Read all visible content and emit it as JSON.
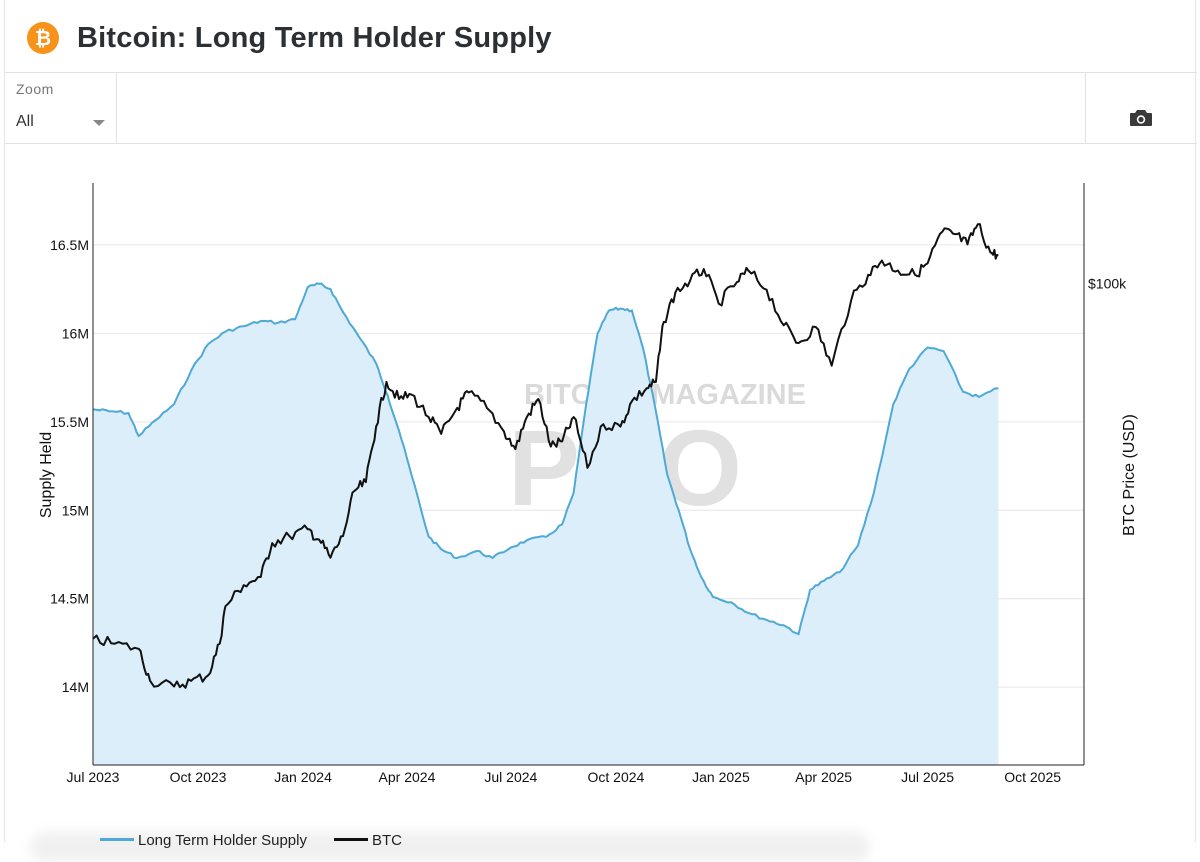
{
  "header": {
    "title": "Bitcoin: Long Term Holder Supply",
    "logo_icon": "bitcoin-logo-icon",
    "logo_glyph": "₿"
  },
  "toolbar": {
    "zoom_label": "Zoom",
    "zoom_value": "All",
    "camera_icon": "camera-icon"
  },
  "colors": {
    "supply_line": "#4fa9d6",
    "supply_fill": "#dbeefa",
    "btc_line": "#111111",
    "accent": "#f7931a"
  },
  "watermark": {
    "line1": "BITCOIN MAGAZINE",
    "line2": "PRO"
  },
  "chart_data": {
    "type": "line",
    "ylabel": "Supply Held",
    "y2label": "BTC Price (USD)",
    "x_tick_labels": [
      "Jul 2023",
      "Oct 2023",
      "Jan 2024",
      "Apr 2024",
      "Jul 2024",
      "Oct 2024",
      "Jan 2025",
      "Apr 2025",
      "Jul 2025",
      "Oct 2025"
    ],
    "y_tick_labels": [
      "14M",
      "14.5M",
      "15M",
      "15.5M",
      "16M",
      "16.5M"
    ],
    "y_ticks": [
      14000000,
      14500000,
      15000000,
      15500000,
      16000000,
      16500000
    ],
    "y2_tick_labels": [
      "$100k"
    ],
    "y2_ticks": [
      100000
    ],
    "xlim": [
      "2023-07-01",
      "2025-11-15"
    ],
    "ylim": [
      13560000,
      16850000
    ],
    "y2lim": [
      20000,
      140000
    ],
    "y2_scale": "log",
    "grid": true,
    "legend_position": "bottom",
    "series": [
      {
        "name": "Long Term Holder Supply",
        "axis": "left",
        "style": "area",
        "x": [
          "2023-07-01",
          "2023-07-15",
          "2023-08-01",
          "2023-08-10",
          "2023-08-25",
          "2023-09-10",
          "2023-09-25",
          "2023-10-10",
          "2023-10-25",
          "2023-11-10",
          "2023-11-25",
          "2023-12-10",
          "2023-12-25",
          "2024-01-05",
          "2024-01-15",
          "2024-01-25",
          "2024-02-05",
          "2024-02-20",
          "2024-03-05",
          "2024-03-15",
          "2024-03-25",
          "2024-04-05",
          "2024-04-20",
          "2024-05-01",
          "2024-05-15",
          "2024-06-01",
          "2024-06-15",
          "2024-07-01",
          "2024-07-15",
          "2024-08-01",
          "2024-08-15",
          "2024-08-25",
          "2024-09-05",
          "2024-09-15",
          "2024-09-25",
          "2024-10-05",
          "2024-10-15",
          "2024-10-25",
          "2024-11-05",
          "2024-11-15",
          "2024-11-25",
          "2024-12-05",
          "2024-12-15",
          "2024-12-25",
          "2025-01-10",
          "2025-01-25",
          "2025-02-10",
          "2025-02-25",
          "2025-03-10",
          "2025-03-20",
          "2025-04-01",
          "2025-04-15",
          "2025-05-01",
          "2025-05-15",
          "2025-06-01",
          "2025-06-15",
          "2025-07-01",
          "2025-07-15",
          "2025-08-01",
          "2025-08-15",
          "2025-09-01"
        ],
        "values": [
          15570000,
          15560000,
          15550000,
          15420000,
          15510000,
          15600000,
          15790000,
          15940000,
          16010000,
          16040000,
          16070000,
          16060000,
          16080000,
          16260000,
          16280000,
          16250000,
          16120000,
          15970000,
          15830000,
          15650000,
          15450000,
          15200000,
          14850000,
          14780000,
          14730000,
          14770000,
          14730000,
          14790000,
          14830000,
          14850000,
          14920000,
          15100000,
          15600000,
          16000000,
          16130000,
          16140000,
          16130000,
          15910000,
          15560000,
          15200000,
          15000000,
          14780000,
          14620000,
          14510000,
          14480000,
          14420000,
          14380000,
          14350000,
          14300000,
          14550000,
          14600000,
          14650000,
          14800000,
          15100000,
          15600000,
          15800000,
          15920000,
          15900000,
          15670000,
          15640000,
          15690000
        ]
      },
      {
        "name": "BTC",
        "axis": "right",
        "style": "line",
        "x": [
          "2023-07-01",
          "2023-07-20",
          "2023-08-10",
          "2023-08-20",
          "2023-09-10",
          "2023-09-25",
          "2023-10-10",
          "2023-10-20",
          "2023-10-25",
          "2023-11-10",
          "2023-11-25",
          "2023-12-05",
          "2023-12-20",
          "2024-01-05",
          "2024-01-15",
          "2024-01-25",
          "2024-02-05",
          "2024-02-15",
          "2024-02-25",
          "2024-03-05",
          "2024-03-14",
          "2024-03-25",
          "2024-04-05",
          "2024-04-20",
          "2024-05-01",
          "2024-05-15",
          "2024-05-25",
          "2024-06-10",
          "2024-06-25",
          "2024-07-05",
          "2024-07-15",
          "2024-07-25",
          "2024-08-05",
          "2024-08-15",
          "2024-08-25",
          "2024-09-06",
          "2024-09-20",
          "2024-10-05",
          "2024-10-15",
          "2024-10-28",
          "2024-11-05",
          "2024-11-12",
          "2024-11-22",
          "2024-12-05",
          "2024-12-17",
          "2024-12-30",
          "2025-01-15",
          "2025-01-25",
          "2025-02-10",
          "2025-02-25",
          "2025-03-10",
          "2025-03-25",
          "2025-04-08",
          "2025-04-25",
          "2025-05-10",
          "2025-05-22",
          "2025-06-05",
          "2025-06-20",
          "2025-07-01",
          "2025-07-14",
          "2025-07-25",
          "2025-08-05",
          "2025-08-14",
          "2025-08-25",
          "2025-09-01"
        ],
        "values": [
          30500,
          30000,
          29500,
          26500,
          26000,
          26500,
          27000,
          30000,
          34000,
          36500,
          37500,
          42000,
          43000,
          44000,
          42500,
          40000,
          43000,
          50000,
          51500,
          62000,
          72000,
          68000,
          69000,
          64000,
          60500,
          66000,
          69500,
          66000,
          61000,
          57500,
          64000,
          68000,
          58000,
          59000,
          64000,
          54000,
          62500,
          62000,
          67500,
          70500,
          72000,
          88000,
          97000,
          101000,
          105000,
          93500,
          100500,
          104500,
          98000,
          87000,
          82000,
          86500,
          76000,
          94500,
          103000,
          108000,
          104500,
          103000,
          107000,
          119000,
          118000,
          114000,
          122000,
          111000,
          110000
        ]
      }
    ]
  }
}
